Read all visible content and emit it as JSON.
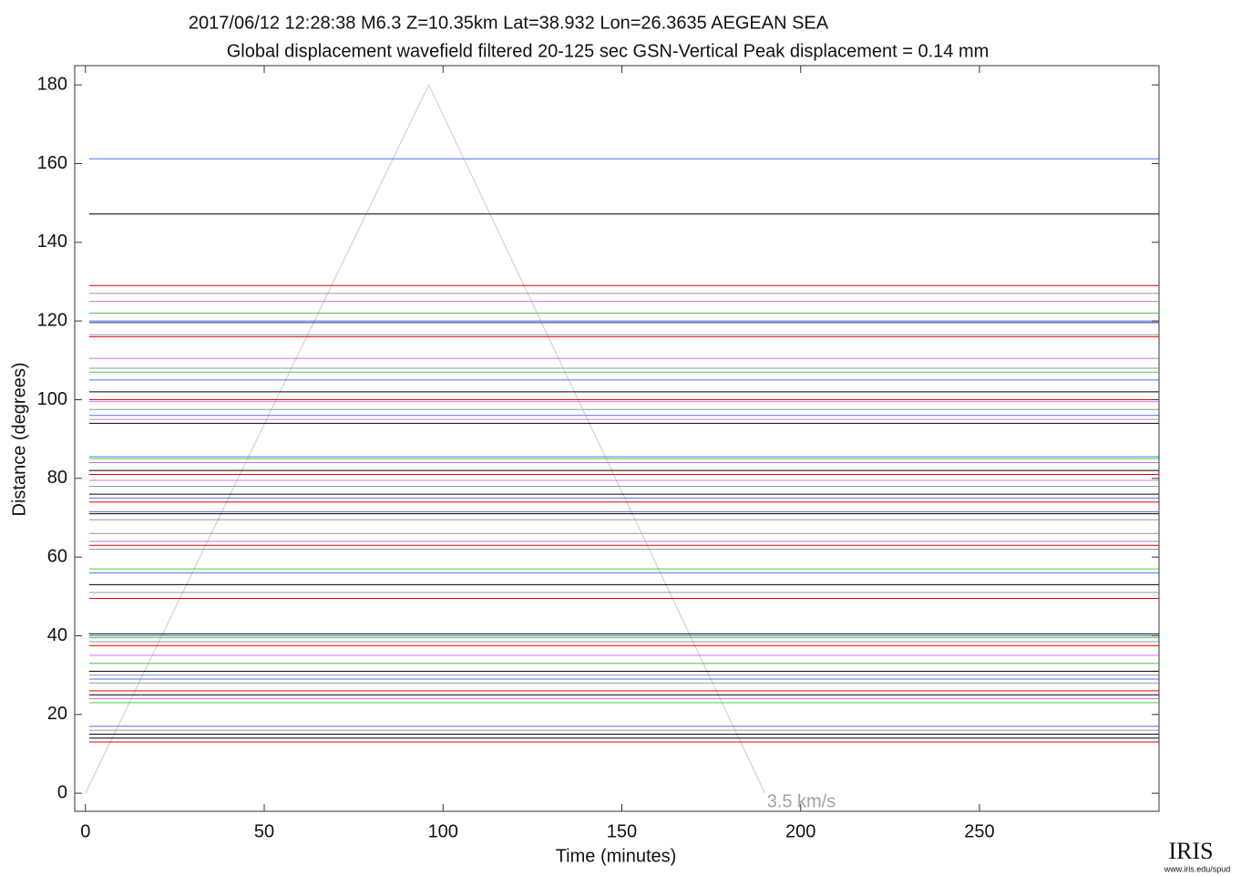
{
  "chart_data": {
    "type": "record_section",
    "title": "2017/06/12  12:28:38  M6.3  Z=10.35km  Lat=38.932 Lon=26.3635  AEGEAN SEA",
    "subtitle": "Global displacement wavefield    filtered 20-125 sec    GSN-Vertical    Peak displacement = 0.14 mm",
    "x_label": "Time (minutes)",
    "y_label": "Distance (degrees)",
    "xlim": [
      -3,
      300.2
    ],
    "ylim": [
      -4.6,
      184.9
    ],
    "xticks": [
      0,
      50,
      100,
      150,
      200,
      250
    ],
    "yticks": [
      0,
      20,
      40,
      60,
      80,
      100,
      120,
      140,
      160,
      180
    ],
    "traces": [
      {
        "distance": 161.2,
        "color": "#5070f0"
      },
      {
        "distance": 147.2,
        "color": "#000000"
      },
      {
        "distance": 129,
        "color": "#e00000"
      },
      {
        "distance": 127,
        "color": "#909aa0"
      },
      {
        "distance": 125,
        "color": "#d070f0"
      },
      {
        "distance": 122,
        "color": "#40d040"
      },
      {
        "distance": 120,
        "color": "#5070f0"
      },
      {
        "distance": 119.6,
        "color": "#203080"
      },
      {
        "distance": 116.5,
        "color": "#909aa0"
      },
      {
        "distance": 116,
        "color": "#e00000"
      },
      {
        "distance": 110.5,
        "color": "#d070f0"
      },
      {
        "distance": 108,
        "color": "#909aa0"
      },
      {
        "distance": 107,
        "color": "#40d040"
      },
      {
        "distance": 105,
        "color": "#5070f0"
      },
      {
        "distance": 102,
        "color": "#000000"
      },
      {
        "distance": 100,
        "color": "#e00000"
      },
      {
        "distance": 99.5,
        "color": "#d070f0"
      },
      {
        "distance": 97.5,
        "color": "#909aa0"
      },
      {
        "distance": 96,
        "color": "#5070f0"
      },
      {
        "distance": 95,
        "color": "#d070f0"
      },
      {
        "distance": 94,
        "color": "#000000"
      },
      {
        "distance": 85.5,
        "color": "#5070f0"
      },
      {
        "distance": 85,
        "color": "#40d040"
      },
      {
        "distance": 84,
        "color": "#d070f0"
      },
      {
        "distance": 82,
        "color": "#000000"
      },
      {
        "distance": 81,
        "color": "#e00000"
      },
      {
        "distance": 79.5,
        "color": "#d070f0"
      },
      {
        "distance": 78,
        "color": "#909aa0"
      },
      {
        "distance": 76,
        "color": "#000000"
      },
      {
        "distance": 75,
        "color": "#5070f0"
      },
      {
        "distance": 74,
        "color": "#e00000"
      },
      {
        "distance": 71.5,
        "color": "#5070f0"
      },
      {
        "distance": 71,
        "color": "#000000"
      },
      {
        "distance": 69.5,
        "color": "#909aa0"
      },
      {
        "distance": 66,
        "color": "#909aa0"
      },
      {
        "distance": 64,
        "color": "#d070f0"
      },
      {
        "distance": 63,
        "color": "#e00000"
      },
      {
        "distance": 62,
        "color": "#909aa0"
      },
      {
        "distance": 57,
        "color": "#40d040"
      },
      {
        "distance": 56,
        "color": "#5070f0"
      },
      {
        "distance": 53,
        "color": "#000000"
      },
      {
        "distance": 51,
        "color": "#909aa0"
      },
      {
        "distance": 49.5,
        "color": "#e00000"
      },
      {
        "distance": 40.5,
        "color": "#000000"
      },
      {
        "distance": 40,
        "color": "#5070f0"
      },
      {
        "distance": 39.5,
        "color": "#40d040"
      },
      {
        "distance": 38.5,
        "color": "#909aa0"
      },
      {
        "distance": 37.5,
        "color": "#e00000"
      },
      {
        "distance": 35,
        "color": "#d070f0"
      },
      {
        "distance": 33,
        "color": "#40d040"
      },
      {
        "distance": 31,
        "color": "#000000"
      },
      {
        "distance": 30,
        "color": "#909aa0"
      },
      {
        "distance": 29,
        "color": "#5070f0"
      },
      {
        "distance": 28,
        "color": "#909aa0"
      },
      {
        "distance": 26,
        "color": "#e00000"
      },
      {
        "distance": 25,
        "color": "#000000"
      },
      {
        "distance": 24,
        "color": "#d070f0"
      },
      {
        "distance": 23,
        "color": "#40d040"
      },
      {
        "distance": 17,
        "color": "#5070f0"
      },
      {
        "distance": 16,
        "color": "#909aa0"
      },
      {
        "distance": 15,
        "color": "#000000"
      },
      {
        "distance": 14,
        "color": "#000000"
      },
      {
        "distance": 13,
        "color": "#e00000"
      }
    ],
    "reference_line": {
      "label": "3.5 km/s",
      "x": [
        0,
        96,
        190
      ],
      "y": [
        0,
        180,
        0
      ],
      "color": "#c8cccc"
    },
    "logo": {
      "name": "IRIS",
      "url": "www.iris.edu/spud"
    }
  }
}
